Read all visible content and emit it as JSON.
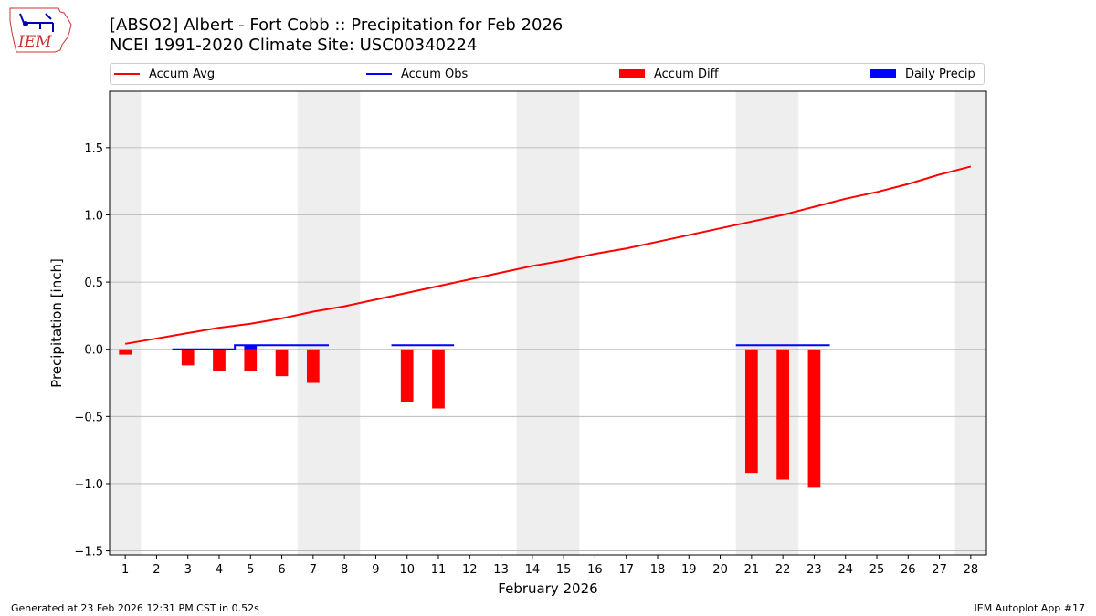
{
  "logo": {
    "text": "IEM"
  },
  "header": {
    "title_line1": "[ABSO2] Albert - Fort Cobb :: Precipitation for Feb 2026",
    "title_line2": "NCEI 1991-2020 Climate Site: USC00340224"
  },
  "legend": {
    "accum_avg": "Accum Avg",
    "accum_obs": "Accum Obs",
    "accum_diff": "Accum Diff",
    "daily_precip": "Daily Precip"
  },
  "colors": {
    "accum_avg": "#ff0000",
    "accum_obs": "#0000ff",
    "accum_diff": "#ff0000",
    "daily_precip": "#0000ff",
    "weekend_shade": "#eeeeee",
    "grid": "#b0b0b0"
  },
  "footer": {
    "left": "Generated at 23 Feb 2026 12:31 PM CST in 0.52s",
    "right": "IEM Autoplot App #17"
  },
  "chart_data": {
    "type": "bar",
    "title": "[ABSO2] Albert - Fort Cobb :: Precipitation for Feb 2026",
    "subtitle": "NCEI 1991-2020 Climate Site: USC00340224",
    "xlabel": "February 2026",
    "ylabel": "Precipitation [inch]",
    "ylim": [
      -1.53,
      1.92
    ],
    "xlim": [
      0.5,
      28.5
    ],
    "x_ticks": [
      1,
      2,
      3,
      4,
      5,
      6,
      7,
      8,
      9,
      10,
      11,
      12,
      13,
      14,
      15,
      16,
      17,
      18,
      19,
      20,
      21,
      22,
      23,
      24,
      25,
      26,
      27,
      28
    ],
    "x_tick_labels": [
      "1",
      "2",
      "3",
      "4",
      "5",
      "6",
      "7",
      "8",
      "9",
      "10",
      "11",
      "12",
      "13",
      "14",
      "15",
      "16",
      "17",
      "18",
      "19",
      "20",
      "21",
      "22",
      "23",
      "24",
      "25",
      "26",
      "27",
      "28"
    ],
    "y_ticks": [
      -1.5,
      -1.0,
      -0.5,
      0.0,
      0.5,
      1.0,
      1.5
    ],
    "y_tick_labels": [
      "−1.5",
      "−1.0",
      "−0.5",
      "0.0",
      "0.5",
      "1.0",
      "1.5"
    ],
    "grid": true,
    "legend_position": "top",
    "weekend_days": [
      1,
      7,
      8,
      14,
      15,
      21,
      22,
      28
    ],
    "days": [
      1,
      2,
      3,
      4,
      5,
      6,
      7,
      8,
      9,
      10,
      11,
      12,
      13,
      14,
      15,
      16,
      17,
      18,
      19,
      20,
      21,
      22,
      23,
      24,
      25,
      26,
      27,
      28
    ],
    "series": [
      {
        "name": "Accum Avg",
        "type": "line",
        "days": [
          1,
          2,
          3,
          4,
          5,
          6,
          7,
          8,
          9,
          10,
          11,
          12,
          13,
          14,
          15,
          16,
          17,
          18,
          19,
          20,
          21,
          22,
          23,
          24,
          25,
          26,
          27,
          28
        ],
        "values": [
          0.04,
          0.08,
          0.12,
          0.16,
          0.19,
          0.23,
          0.28,
          0.32,
          0.37,
          0.42,
          0.47,
          0.52,
          0.57,
          0.62,
          0.66,
          0.71,
          0.75,
          0.8,
          0.85,
          0.9,
          0.95,
          1.0,
          1.06,
          1.12,
          1.17,
          1.23,
          1.3,
          1.36
        ]
      },
      {
        "name": "Accum Obs",
        "type": "step",
        "days": [
          3,
          4,
          5,
          6,
          7,
          10,
          11,
          21,
          22,
          23
        ],
        "values": [
          0.0,
          0.0,
          0.03,
          0.03,
          0.03,
          0.03,
          0.03,
          0.03,
          0.03,
          0.03
        ]
      },
      {
        "name": "Accum Diff",
        "type": "bar",
        "days": [
          1,
          3,
          4,
          5,
          6,
          7,
          10,
          11,
          21,
          22,
          23
        ],
        "values": [
          -0.04,
          -0.12,
          -0.16,
          -0.16,
          -0.2,
          -0.25,
          -0.39,
          -0.44,
          -0.92,
          -0.97,
          -1.03
        ]
      },
      {
        "name": "Daily Precip",
        "type": "bar",
        "days": [
          5
        ],
        "values": [
          0.03
        ]
      }
    ]
  }
}
